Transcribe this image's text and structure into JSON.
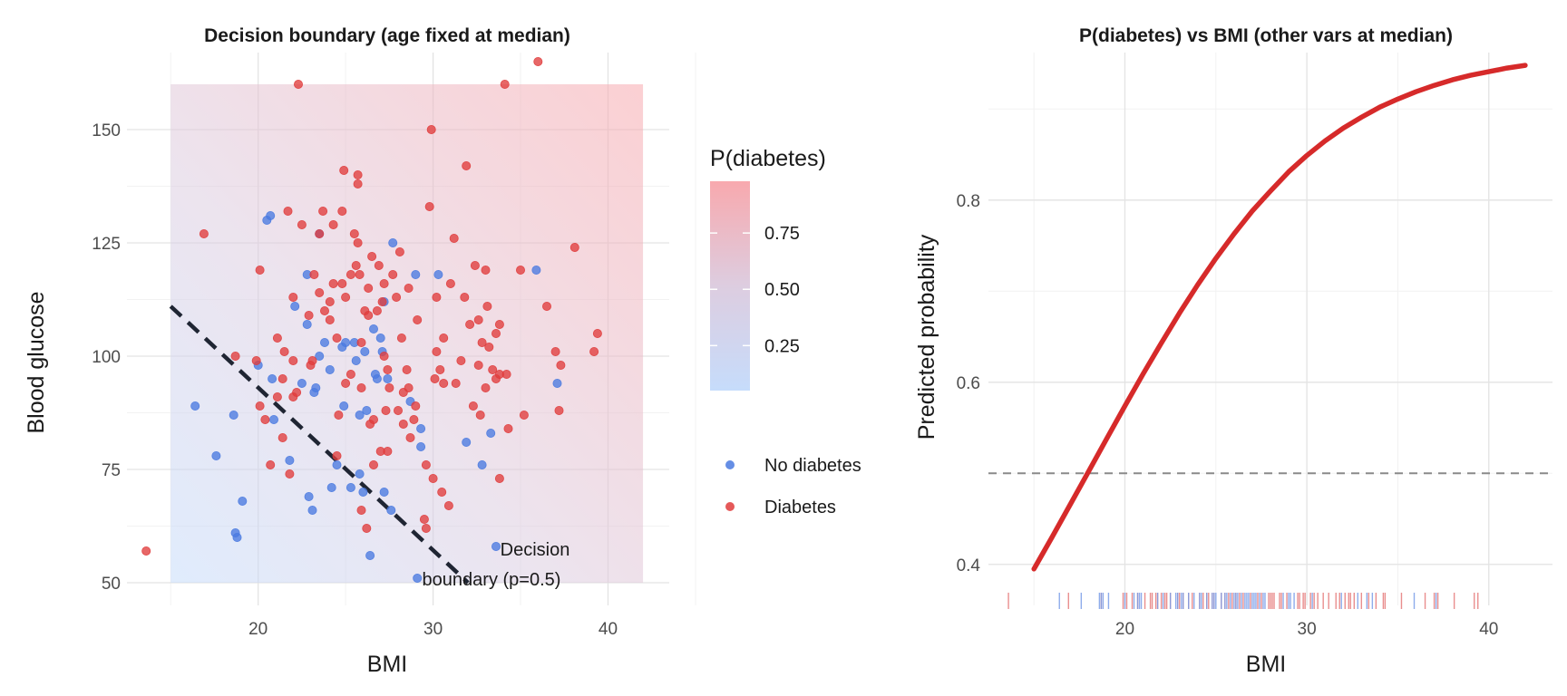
{
  "chart_data": [
    {
      "type": "scatter",
      "title": "Decision boundary (age fixed at median)",
      "xlabel": "BMI",
      "ylabel": "Blood glucose",
      "xlim": [
        12.5,
        43.5
      ],
      "ylim": [
        45,
        167
      ],
      "x_ticks": [
        20,
        30,
        40
      ],
      "y_ticks": [
        50,
        75,
        100,
        125,
        150
      ],
      "grid": true,
      "background": {
        "type": "probability-gradient",
        "bmi_range": [
          15,
          42
        ],
        "glucose_range": [
          50,
          160
        ],
        "colors": {
          "low": "#c6dcfb",
          "mid": "#ddcde0",
          "high": "#f8a9ae"
        }
      },
      "colorbar": {
        "title": "P(diabetes)",
        "labels": [
          "0.75",
          "0.50",
          "0.25"
        ],
        "values": [
          0.75,
          0.5,
          0.25
        ],
        "range": [
          0.05,
          0.98
        ]
      },
      "legend": [
        {
          "label": "No diabetes",
          "color": "#4a7ae0"
        },
        {
          "label": "Diabetes",
          "color": "#e03c3c"
        }
      ],
      "boundary": {
        "label_line1": "Decision",
        "label_line2": "boundary (p=0.5)",
        "from": [
          15,
          111
        ],
        "to": [
          32,
          50
        ]
      },
      "series": [
        {
          "name": "No diabetes",
          "color": "#4a7ae0",
          "points": [
            [
              16.4,
              89
            ],
            [
              17.6,
              78
            ],
            [
              18.6,
              87
            ],
            [
              18.7,
              61
            ],
            [
              18.8,
              60
            ],
            [
              19.1,
              68
            ],
            [
              20.0,
              98
            ],
            [
              20.5,
              130
            ],
            [
              20.7,
              131
            ],
            [
              20.8,
              95
            ],
            [
              20.9,
              86
            ],
            [
              21.8,
              77
            ],
            [
              22.1,
              111
            ],
            [
              22.5,
              94
            ],
            [
              22.8,
              118
            ],
            [
              22.8,
              107
            ],
            [
              22.9,
              69
            ],
            [
              23.1,
              66
            ],
            [
              23.2,
              92
            ],
            [
              23.3,
              93
            ],
            [
              23.5,
              127
            ],
            [
              23.5,
              100
            ],
            [
              23.8,
              103
            ],
            [
              24.1,
              97
            ],
            [
              24.2,
              71
            ],
            [
              24.5,
              76
            ],
            [
              24.8,
              102
            ],
            [
              24.9,
              89
            ],
            [
              25.0,
              103
            ],
            [
              25.3,
              71
            ],
            [
              25.5,
              103
            ],
            [
              25.6,
              99
            ],
            [
              25.8,
              74
            ],
            [
              25.8,
              87
            ],
            [
              26.0,
              70
            ],
            [
              26.1,
              101
            ],
            [
              26.2,
              88
            ],
            [
              26.4,
              56
            ],
            [
              26.6,
              106
            ],
            [
              26.7,
              96
            ],
            [
              26.8,
              95
            ],
            [
              27.0,
              104
            ],
            [
              27.1,
              101
            ],
            [
              27.2,
              70
            ],
            [
              27.2,
              112
            ],
            [
              27.4,
              95
            ],
            [
              27.6,
              66
            ],
            [
              27.7,
              125
            ],
            [
              28.7,
              90
            ],
            [
              29.0,
              118
            ],
            [
              29.1,
              51
            ],
            [
              29.3,
              84
            ],
            [
              29.3,
              80
            ],
            [
              30.3,
              118
            ],
            [
              31.9,
              81
            ],
            [
              32.8,
              76
            ],
            [
              33.3,
              83
            ],
            [
              33.6,
              58
            ],
            [
              35.9,
              119
            ],
            [
              37.1,
              94
            ]
          ]
        },
        {
          "name": "Diabetes",
          "color": "#e03c3c",
          "points": [
            [
              13.6,
              57
            ],
            [
              16.9,
              127
            ],
            [
              18.7,
              100
            ],
            [
              19.9,
              99
            ],
            [
              20.1,
              119
            ],
            [
              20.1,
              89
            ],
            [
              20.4,
              86
            ],
            [
              20.7,
              76
            ],
            [
              21.1,
              104
            ],
            [
              21.1,
              91
            ],
            [
              21.4,
              95
            ],
            [
              21.4,
              82
            ],
            [
              21.5,
              101
            ],
            [
              21.7,
              132
            ],
            [
              21.8,
              74
            ],
            [
              22.0,
              113
            ],
            [
              22.0,
              91
            ],
            [
              22.0,
              99
            ],
            [
              22.2,
              92
            ],
            [
              22.3,
              160
            ],
            [
              22.5,
              129
            ],
            [
              22.9,
              109
            ],
            [
              23.0,
              98
            ],
            [
              23.1,
              99
            ],
            [
              23.2,
              118
            ],
            [
              23.5,
              127
            ],
            [
              23.5,
              114
            ],
            [
              23.7,
              132
            ],
            [
              24.1,
              108
            ],
            [
              24.3,
              129
            ],
            [
              24.3,
              116
            ],
            [
              24.5,
              78
            ],
            [
              24.5,
              104
            ],
            [
              24.6,
              87
            ],
            [
              24.8,
              132
            ],
            [
              24.8,
              116
            ],
            [
              24.9,
              141
            ],
            [
              25.0,
              94
            ],
            [
              25.0,
              113
            ],
            [
              25.3,
              118
            ],
            [
              25.3,
              96
            ],
            [
              25.5,
              127
            ],
            [
              25.6,
              120
            ],
            [
              25.7,
              140
            ],
            [
              25.7,
              138
            ],
            [
              25.7,
              125
            ],
            [
              25.8,
              118
            ],
            [
              25.9,
              103
            ],
            [
              25.9,
              93
            ],
            [
              25.9,
              66
            ],
            [
              26.1,
              110
            ],
            [
              26.2,
              62
            ],
            [
              26.3,
              115
            ],
            [
              26.3,
              109
            ],
            [
              26.4,
              85
            ],
            [
              26.5,
              122
            ],
            [
              26.6,
              86
            ],
            [
              26.6,
              76
            ],
            [
              26.8,
              110
            ],
            [
              26.9,
              120
            ],
            [
              27.0,
              79
            ],
            [
              27.1,
              112
            ],
            [
              27.2,
              100
            ],
            [
              27.2,
              116
            ],
            [
              27.3,
              88
            ],
            [
              27.4,
              97
            ],
            [
              27.5,
              93
            ],
            [
              27.7,
              118
            ],
            [
              27.9,
              113
            ],
            [
              28.0,
              88
            ],
            [
              28.1,
              123
            ],
            [
              28.2,
              104
            ],
            [
              28.3,
              92
            ],
            [
              28.5,
              97
            ],
            [
              28.6,
              115
            ],
            [
              28.6,
              93
            ],
            [
              28.7,
              82
            ],
            [
              28.9,
              86
            ],
            [
              29.0,
              89
            ],
            [
              29.1,
              108
            ],
            [
              29.5,
              64
            ],
            [
              29.6,
              76
            ],
            [
              29.6,
              62
            ],
            [
              29.8,
              133
            ],
            [
              29.9,
              150
            ],
            [
              30.0,
              73
            ],
            [
              30.1,
              95
            ],
            [
              30.2,
              113
            ],
            [
              30.2,
              101
            ],
            [
              30.4,
              97
            ],
            [
              30.5,
              70
            ],
            [
              30.6,
              104
            ],
            [
              30.6,
              94
            ],
            [
              30.9,
              67
            ],
            [
              31.2,
              126
            ],
            [
              31.3,
              94
            ],
            [
              31.6,
              99
            ],
            [
              31.8,
              113
            ],
            [
              31.9,
              142
            ],
            [
              32.1,
              107
            ],
            [
              32.3,
              89
            ],
            [
              32.4,
              120
            ],
            [
              32.6,
              98
            ],
            [
              32.6,
              108
            ],
            [
              32.7,
              87
            ],
            [
              32.8,
              103
            ],
            [
              33.0,
              119
            ],
            [
              33.0,
              93
            ],
            [
              33.1,
              111
            ],
            [
              33.2,
              102
            ],
            [
              33.4,
              97
            ],
            [
              33.6,
              95
            ],
            [
              33.6,
              105
            ],
            [
              33.8,
              107
            ],
            [
              33.8,
              96
            ],
            [
              33.8,
              73
            ],
            [
              34.2,
              96
            ],
            [
              34.3,
              84
            ],
            [
              35.2,
              87
            ],
            [
              36.5,
              111
            ],
            [
              37.0,
              101
            ],
            [
              37.2,
              88
            ],
            [
              38.1,
              124
            ],
            [
              39.2,
              101
            ],
            [
              39.4,
              105
            ],
            [
              34.1,
              160
            ],
            [
              35.0,
              119
            ],
            [
              36.0,
              165
            ],
            [
              37.3,
              98
            ],
            [
              24.1,
              112
            ],
            [
              31.0,
              116
            ],
            [
              27.4,
              79
            ],
            [
              23.8,
              110
            ],
            [
              28.3,
              85
            ]
          ]
        }
      ]
    },
    {
      "type": "line",
      "title": "P(diabetes) vs BMI (other vars at median)",
      "xlabel": "BMI",
      "ylabel": "Predicted probability",
      "xlim": [
        12.5,
        43.5
      ],
      "ylim": [
        0.355,
        0.962
      ],
      "x_ticks": [
        20,
        30,
        40
      ],
      "y_ticks": [
        0.4,
        0.6,
        0.8
      ],
      "grid": true,
      "threshold": 0.5,
      "series": [
        {
          "name": "",
          "color": "#d62a2a",
          "x": [
            15,
            16,
            17,
            18,
            19,
            20,
            21,
            22,
            23,
            24,
            25,
            26,
            27,
            28,
            29,
            30,
            31,
            32,
            33,
            34,
            35,
            36,
            37,
            38,
            39,
            40,
            41,
            42
          ],
          "y": [
            0.395,
            0.43,
            0.466,
            0.502,
            0.538,
            0.574,
            0.609,
            0.643,
            0.676,
            0.707,
            0.736,
            0.763,
            0.788,
            0.81,
            0.831,
            0.849,
            0.865,
            0.879,
            0.891,
            0.902,
            0.911,
            0.919,
            0.926,
            0.932,
            0.937,
            0.941,
            0.945,
            0.948
          ]
        }
      ],
      "rug": {
        "no_diabetes_color": "#7a9ee8",
        "diabetes_color": "#e57a7a",
        "no_diabetes_x": [
          16.4,
          17.6,
          18.6,
          18.7,
          18.8,
          19.1,
          20.0,
          20.5,
          20.7,
          20.8,
          20.9,
          21.8,
          22.1,
          22.5,
          22.8,
          22.9,
          23.1,
          23.2,
          23.5,
          23.8,
          24.1,
          24.2,
          24.5,
          24.8,
          24.9,
          25.0,
          25.3,
          25.5,
          25.6,
          25.8,
          26.0,
          26.1,
          26.2,
          26.4,
          26.6,
          26.7,
          26.8,
          27.0,
          27.1,
          27.2,
          27.4,
          27.6,
          27.7,
          28.7,
          29.0,
          29.1,
          29.3,
          30.3,
          31.9,
          32.8,
          33.3,
          33.6,
          35.9,
          37.1
        ],
        "diabetes_x": [
          13.6,
          16.9,
          18.7,
          19.9,
          20.1,
          20.4,
          20.7,
          21.1,
          21.4,
          21.5,
          21.7,
          21.8,
          22.0,
          22.2,
          22.3,
          22.5,
          22.9,
          23.0,
          23.2,
          23.5,
          23.7,
          24.1,
          24.3,
          24.5,
          24.6,
          24.8,
          24.9,
          25.3,
          25.5,
          25.7,
          25.9,
          26.1,
          26.3,
          26.5,
          26.9,
          27.3,
          27.5,
          27.9,
          28.0,
          28.1,
          28.2,
          28.5,
          28.6,
          28.9,
          29.5,
          29.6,
          29.8,
          29.9,
          30.2,
          30.4,
          30.6,
          30.9,
          31.2,
          31.6,
          31.8,
          32.1,
          32.3,
          32.4,
          32.6,
          33.0,
          33.4,
          33.8,
          34.2,
          34.3,
          35.2,
          36.5,
          37.0,
          37.2,
          38.1,
          39.2,
          39.4
        ]
      }
    }
  ]
}
